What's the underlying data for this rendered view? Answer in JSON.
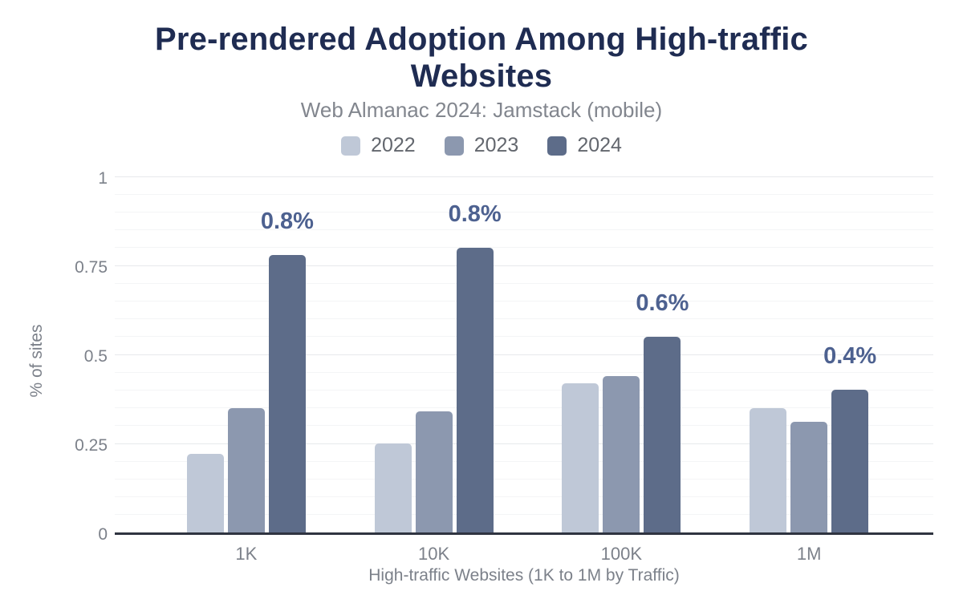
{
  "chart_data": {
    "type": "bar",
    "title": "Pre-rendered Adoption Among High-traffic Websites",
    "subtitle": "Web Almanac 2024: Jamstack (mobile)",
    "xlabel": "High-traffic Websites (1K to 1M by Traffic)",
    "ylabel": "% of sites",
    "categories": [
      "1K",
      "10K",
      "100K",
      "1M"
    ],
    "series": [
      {
        "name": "2022",
        "color": "#bfc8d7",
        "values": [
          0.22,
          0.25,
          0.42,
          0.35
        ]
      },
      {
        "name": "2023",
        "color": "#8c98af",
        "values": [
          0.35,
          0.34,
          0.44,
          0.31
        ]
      },
      {
        "name": "2024",
        "color": "#5d6c89",
        "values": [
          0.78,
          0.8,
          0.55,
          0.4
        ],
        "bar_labels": [
          "0.8%",
          "0.8%",
          "0.6%",
          "0.4%"
        ]
      }
    ],
    "ylim": [
      0,
      1
    ],
    "yticks": [
      {
        "value": 0,
        "label": "0"
      },
      {
        "value": 0.25,
        "label": "0.25"
      },
      {
        "value": 0.5,
        "label": "0.5"
      },
      {
        "value": 0.75,
        "label": "0.75"
      },
      {
        "value": 1,
        "label": "1"
      }
    ],
    "minor_grid_step": 0.05,
    "major_grid_step": 0.25,
    "grid": true,
    "legend_position": "top"
  },
  "theme": {
    "title_color": "#1f2c52",
    "subtitle_color": "#82868e",
    "legend_text_color": "#63676e",
    "axis_text_color": "#7c818a",
    "annotation_color": "#4d6190",
    "axis_line_color": "#2f3440",
    "grid_major_color": "#e7e9ec",
    "grid_minor_color": "#f4f5f6",
    "background": "#ffffff"
  }
}
